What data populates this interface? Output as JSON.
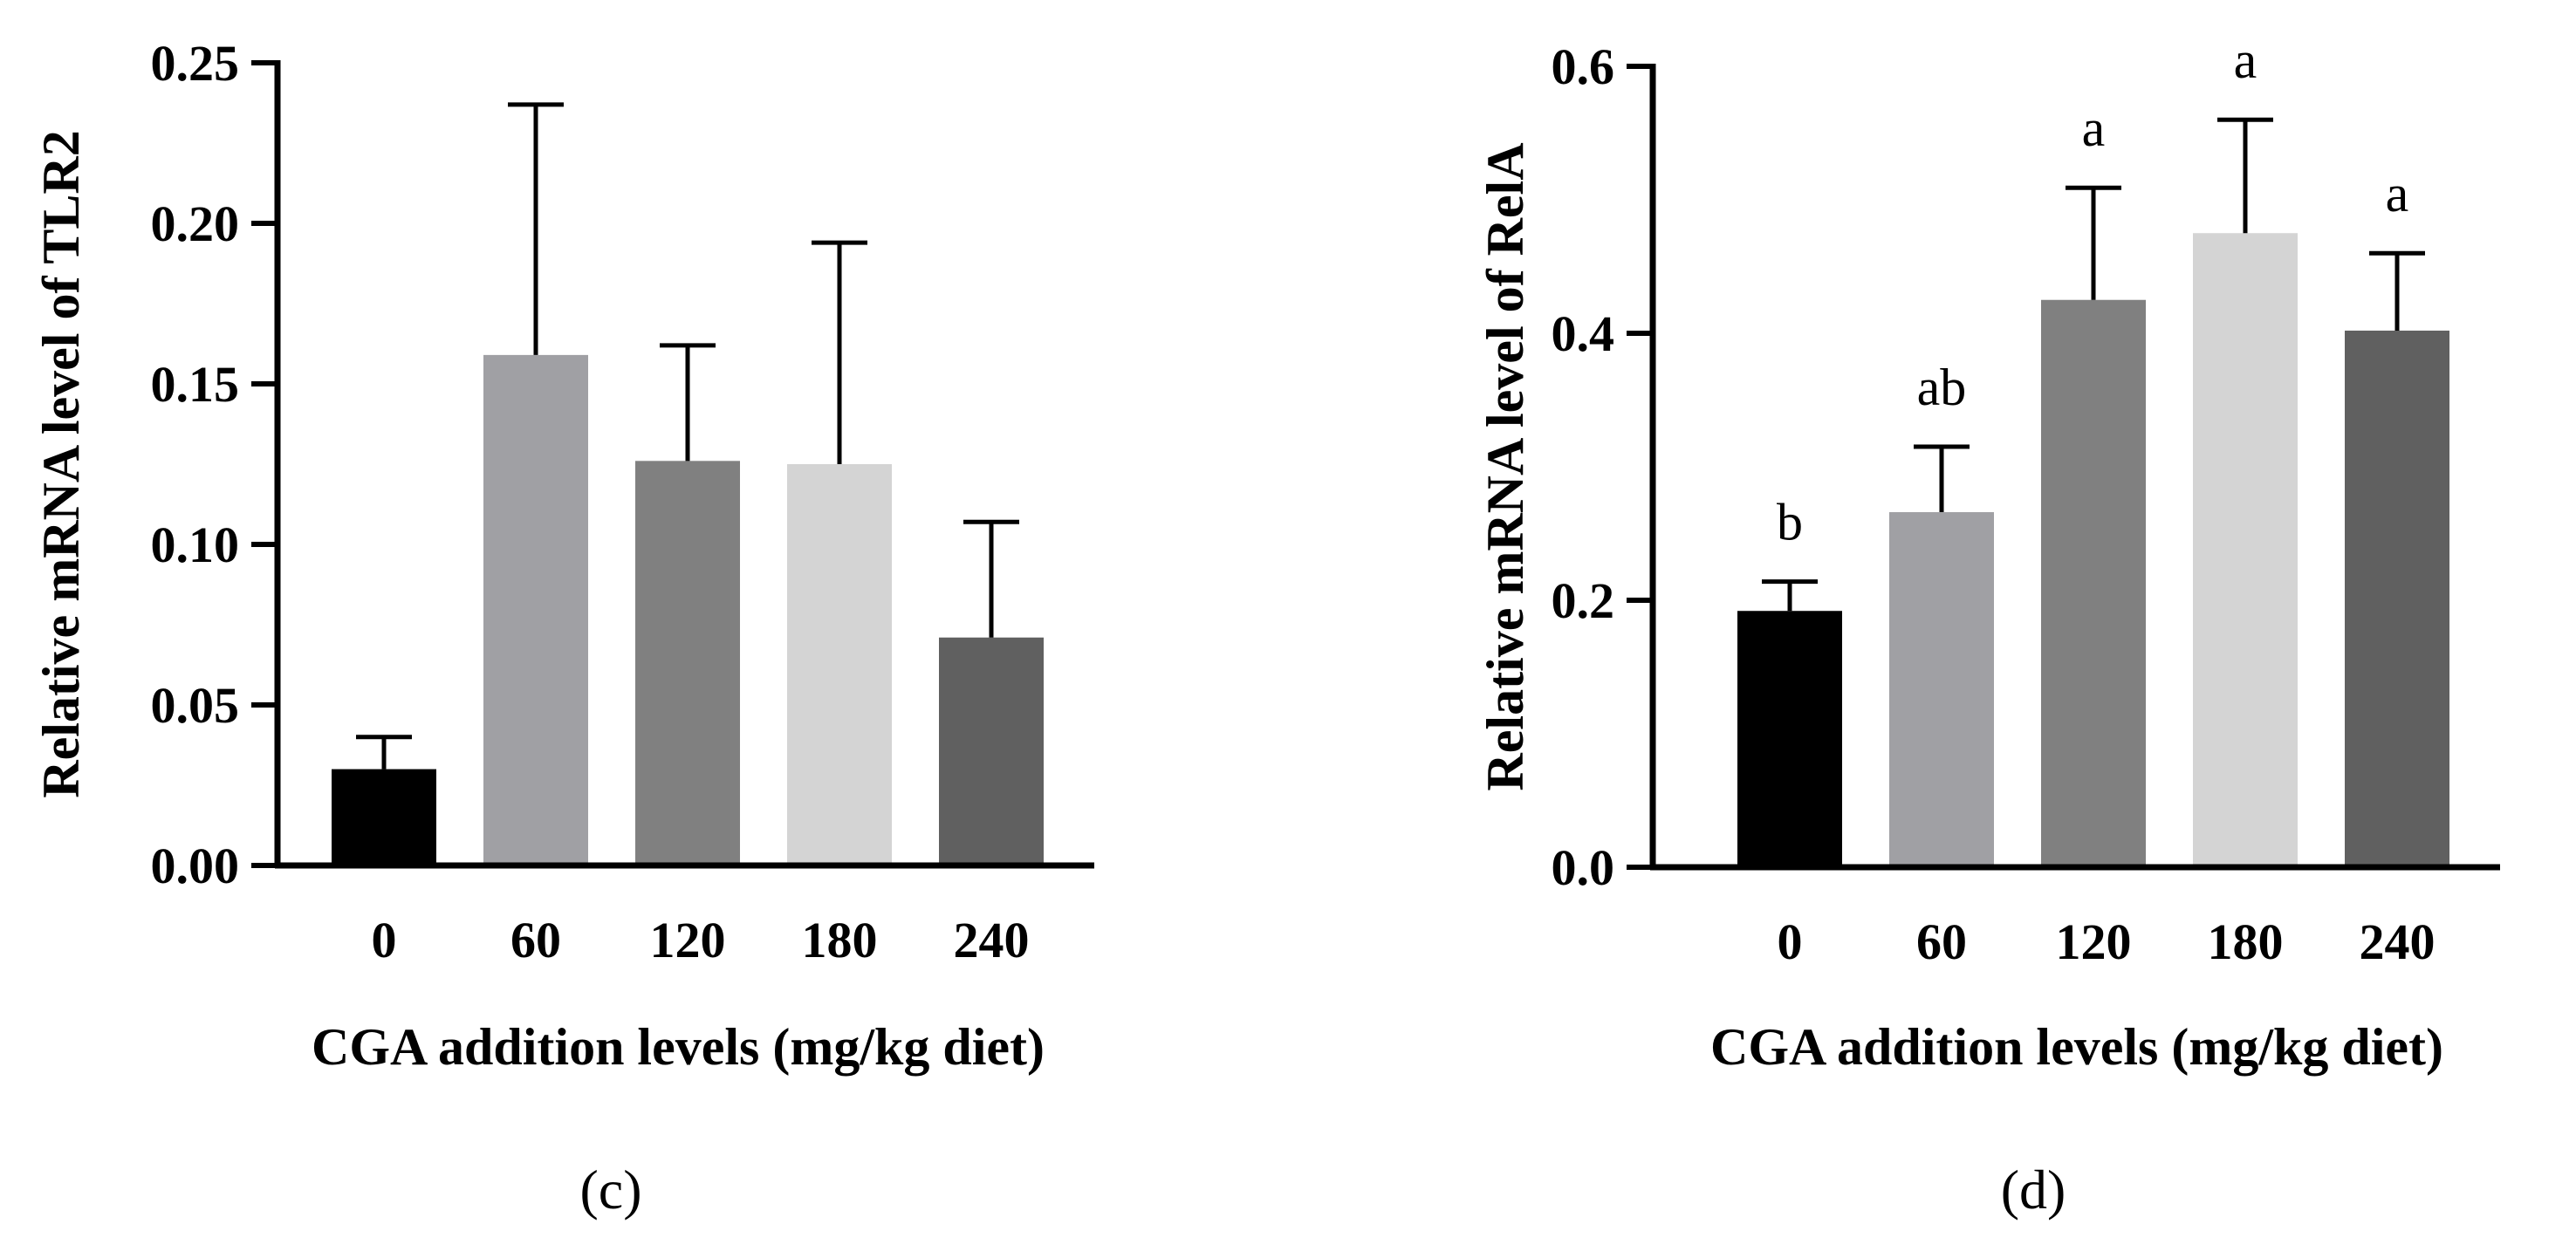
{
  "chart_data": [
    {
      "type": "bar",
      "panel_label": "(c)",
      "categories": [
        "0",
        "60",
        "120",
        "180",
        "240"
      ],
      "values": [
        0.03,
        0.159,
        0.126,
        0.125,
        0.071
      ],
      "errors": [
        0.01,
        0.078,
        0.036,
        0.069,
        0.036
      ],
      "significance": [
        "",
        "",
        "",
        "",
        ""
      ],
      "bar_colors": [
        "#000000",
        "#a0a0a4",
        "#808080",
        "#d4d4d4",
        "#606060"
      ],
      "xlabel": "CGA addition levels (mg/kg diet)",
      "ylabel": "Relative mRNA level of TLR2",
      "ylim": [
        0,
        0.25
      ],
      "yticks": [
        "0.00",
        "0.05",
        "0.10",
        "0.15",
        "0.20",
        "0.25"
      ],
      "grid": false,
      "legend": "none"
    },
    {
      "type": "bar",
      "panel_label": "(d)",
      "categories": [
        "0",
        "60",
        "120",
        "180",
        "240"
      ],
      "values": [
        0.192,
        0.266,
        0.425,
        0.475,
        0.402
      ],
      "errors": [
        0.022,
        0.049,
        0.084,
        0.085,
        0.058
      ],
      "significance": [
        "b",
        "ab",
        "a",
        "a",
        "a"
      ],
      "bar_colors": [
        "#000000",
        "#a0a0a4",
        "#808080",
        "#d4d4d4",
        "#606060"
      ],
      "xlabel": "CGA addition levels (mg/kg diet)",
      "ylabel": "Relative mRNA level of  RelA",
      "ylim": [
        0,
        0.6
      ],
      "yticks": [
        "0.0",
        "0.2",
        "0.4",
        "0.6"
      ],
      "grid": false,
      "legend": "none"
    }
  ]
}
